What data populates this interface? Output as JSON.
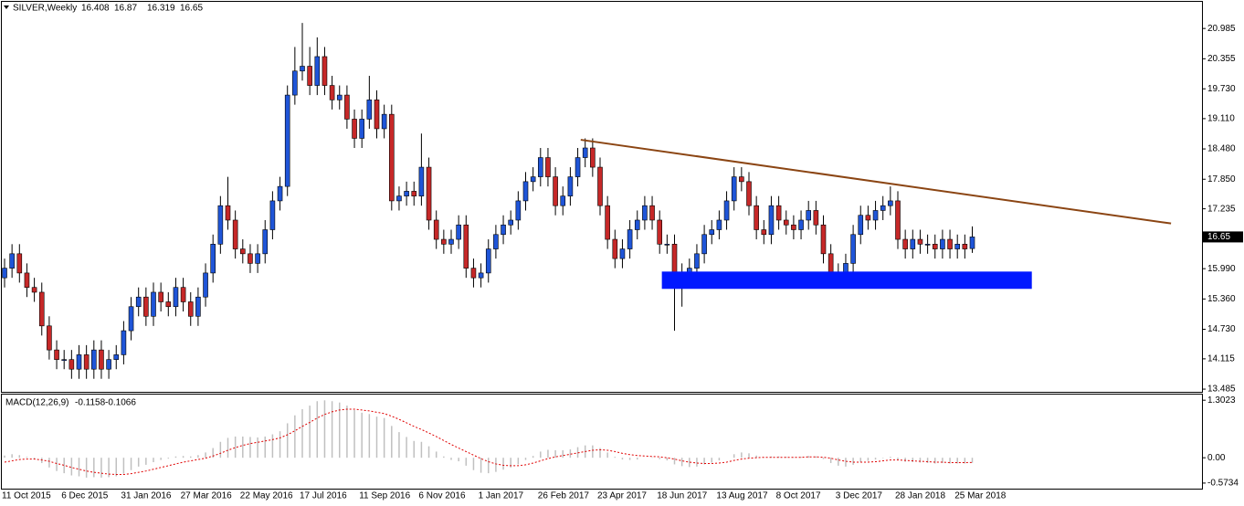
{
  "chart_data": [
    {
      "type": "candlestick",
      "title": "SILVER,Weekly",
      "categories": [
        "11 Oct 2015",
        null,
        null,
        null,
        null,
        null,
        null,
        null,
        "6 Dec 2015",
        null,
        null,
        null,
        null,
        null,
        null,
        null,
        "31 Jan 2016",
        null,
        null,
        null,
        null,
        null,
        null,
        null,
        "27 Mar 2016",
        null,
        null,
        null,
        null,
        null,
        null,
        null,
        "22 May 2016",
        null,
        null,
        null,
        null,
        null,
        null,
        null,
        "17 Jul 2016",
        null,
        null,
        null,
        null,
        null,
        null,
        null,
        "11 Sep 2016",
        null,
        null,
        null,
        null,
        null,
        null,
        null,
        "6 Nov 2016",
        null,
        null,
        null,
        null,
        null,
        null,
        null,
        "1 Jan 2017",
        null,
        null,
        null,
        null,
        null,
        null,
        null,
        "26 Feb 2017",
        null,
        null,
        null,
        null,
        null,
        null,
        null,
        "23 Apr 2017",
        null,
        null,
        null,
        null,
        null,
        null,
        null,
        "18 Jun 2017",
        null,
        null,
        null,
        null,
        null,
        null,
        null,
        "13 Aug 2017",
        null,
        null,
        null,
        null,
        null,
        null,
        null,
        "8 Oct 2017",
        null,
        null,
        null,
        null,
        null,
        null,
        null,
        "3 Dec 2017",
        null,
        null,
        null,
        null,
        null,
        null,
        null,
        "28 Jan 2018",
        null,
        null,
        null,
        null,
        null,
        null,
        null,
        "25 Mar 2018",
        null,
        null
      ],
      "open": [
        15.8,
        16.0,
        16.3,
        15.9,
        15.6,
        15.5,
        14.8,
        14.3,
        14.1,
        14.1,
        13.9,
        14.2,
        13.9,
        14.3,
        13.9,
        14.1,
        14.2,
        14.7,
        15.2,
        15.4,
        15.0,
        15.5,
        15.3,
        15.2,
        15.6,
        15.3,
        15.0,
        15.4,
        15.9,
        16.5,
        17.3,
        17.0,
        16.4,
        16.3,
        16.1,
        16.3,
        16.8,
        17.4,
        17.7,
        19.6,
        20.1,
        20.2,
        19.8,
        20.4,
        19.8,
        19.5,
        19.6,
        19.1,
        18.7,
        19.1,
        19.5,
        18.9,
        19.2,
        17.4,
        17.5,
        17.6,
        17.5,
        18.1,
        17.0,
        16.6,
        16.5,
        16.6,
        16.9,
        16.0,
        15.8,
        15.9,
        16.4,
        16.7,
        16.9,
        17.0,
        17.4,
        17.8,
        17.9,
        18.3,
        17.9,
        17.3,
        17.5,
        17.9,
        18.3,
        18.5,
        18.1,
        17.3,
        16.6,
        16.2,
        16.4,
        16.8,
        17.0,
        17.3,
        17.0,
        16.5,
        16.5,
        15.6,
        15.9,
        16.0,
        16.3,
        16.7,
        16.8,
        17.0,
        17.4,
        17.9,
        17.8,
        17.3,
        16.8,
        16.7,
        17.3,
        17.0,
        16.9,
        16.8,
        17.0,
        17.2,
        16.9,
        16.3,
        15.8,
        15.9,
        16.1,
        16.7,
        17.1,
        17.0,
        17.2,
        17.3,
        17.4,
        16.6,
        16.4,
        16.6,
        16.5,
        16.5,
        16.4,
        16.6,
        16.4,
        16.5,
        16.408
      ],
      "high": [
        16.2,
        16.5,
        16.5,
        16.1,
        15.8,
        15.7,
        15.0,
        14.5,
        14.3,
        14.3,
        14.4,
        14.4,
        14.5,
        14.5,
        14.3,
        14.4,
        14.9,
        15.4,
        15.6,
        15.6,
        15.7,
        15.7,
        15.5,
        15.8,
        15.8,
        15.5,
        15.6,
        16.1,
        16.7,
        17.5,
        17.9,
        17.2,
        16.6,
        16.5,
        16.5,
        17.0,
        17.6,
        17.9,
        19.8,
        20.6,
        21.1,
        20.6,
        20.8,
        20.6,
        20.0,
        19.8,
        19.8,
        19.3,
        19.3,
        20.0,
        19.7,
        19.4,
        19.4,
        17.7,
        17.8,
        17.8,
        18.8,
        18.3,
        17.2,
        16.8,
        16.8,
        17.1,
        17.1,
        16.2,
        16.1,
        16.6,
        16.9,
        17.1,
        17.2,
        17.6,
        18.0,
        18.1,
        18.5,
        18.5,
        18.1,
        17.7,
        18.1,
        18.5,
        18.7,
        18.7,
        18.3,
        17.5,
        16.8,
        16.6,
        17.0,
        17.2,
        17.5,
        17.5,
        17.2,
        16.7,
        16.7,
        16.1,
        16.2,
        16.5,
        16.9,
        17.0,
        17.2,
        17.6,
        18.1,
        18.1,
        18.0,
        17.5,
        17.0,
        17.5,
        17.5,
        17.2,
        17.1,
        17.2,
        17.4,
        17.4,
        17.1,
        16.5,
        16.1,
        16.3,
        16.9,
        17.3,
        17.3,
        17.4,
        17.5,
        17.7,
        17.6,
        16.8,
        16.8,
        16.8,
        16.7,
        16.7,
        16.8,
        16.8,
        16.7,
        16.7,
        16.87
      ],
      "low": [
        15.6,
        15.8,
        15.7,
        15.4,
        15.3,
        14.6,
        14.1,
        13.9,
        13.9,
        13.7,
        13.7,
        13.7,
        13.7,
        13.7,
        13.7,
        13.9,
        14.0,
        14.5,
        15.0,
        14.8,
        14.8,
        15.1,
        15.0,
        15.0,
        15.1,
        14.8,
        14.8,
        15.2,
        15.7,
        16.3,
        16.8,
        16.2,
        16.1,
        15.9,
        15.9,
        16.1,
        16.6,
        17.2,
        17.5,
        19.4,
        19.9,
        19.6,
        19.6,
        19.6,
        19.3,
        19.3,
        18.9,
        18.5,
        18.5,
        18.9,
        18.7,
        18.7,
        17.2,
        17.2,
        17.3,
        17.3,
        17.3,
        16.8,
        16.4,
        16.3,
        16.3,
        16.4,
        15.8,
        15.6,
        15.6,
        15.7,
        16.2,
        16.5,
        16.7,
        16.8,
        17.2,
        17.6,
        17.7,
        17.7,
        17.1,
        17.1,
        17.3,
        17.7,
        18.1,
        17.9,
        17.1,
        16.4,
        16.0,
        16.0,
        16.2,
        16.6,
        16.8,
        16.8,
        16.3,
        16.3,
        14.7,
        15.2,
        15.7,
        15.8,
        16.1,
        16.5,
        16.6,
        16.8,
        17.2,
        17.6,
        17.1,
        16.6,
        16.5,
        16.5,
        16.8,
        16.7,
        16.6,
        16.6,
        16.8,
        16.7,
        16.1,
        15.6,
        15.6,
        15.7,
        15.9,
        16.5,
        16.8,
        16.8,
        17.0,
        17.1,
        16.4,
        16.2,
        16.2,
        16.3,
        16.3,
        16.2,
        16.2,
        16.2,
        16.2,
        16.2,
        16.319
      ],
      "close": [
        16.0,
        16.3,
        15.9,
        15.6,
        15.5,
        14.8,
        14.3,
        14.1,
        14.1,
        13.9,
        14.2,
        13.9,
        14.3,
        13.9,
        14.1,
        14.2,
        14.7,
        15.2,
        15.4,
        15.0,
        15.5,
        15.3,
        15.2,
        15.6,
        15.3,
        15.0,
        15.4,
        15.9,
        16.5,
        17.3,
        17.0,
        16.4,
        16.3,
        16.1,
        16.3,
        16.8,
        17.4,
        17.7,
        19.6,
        20.1,
        20.2,
        19.8,
        20.4,
        19.8,
        19.5,
        19.6,
        19.1,
        18.7,
        19.1,
        19.5,
        18.9,
        19.2,
        17.4,
        17.5,
        17.6,
        17.5,
        18.1,
        17.0,
        16.6,
        16.5,
        16.6,
        16.9,
        16.0,
        15.8,
        15.9,
        16.4,
        16.7,
        16.9,
        17.0,
        17.4,
        17.8,
        17.9,
        18.3,
        17.9,
        17.3,
        17.5,
        17.9,
        18.3,
        18.5,
        18.1,
        17.3,
        16.6,
        16.2,
        16.4,
        16.8,
        17.0,
        17.3,
        17.0,
        16.5,
        16.5,
        15.6,
        15.9,
        16.0,
        16.3,
        16.7,
        16.8,
        17.0,
        17.4,
        17.9,
        17.8,
        17.3,
        16.8,
        16.7,
        17.3,
        17.0,
        16.9,
        16.8,
        17.0,
        17.2,
        16.9,
        16.3,
        15.8,
        15.9,
        16.1,
        16.7,
        17.1,
        17.0,
        17.2,
        17.3,
        17.4,
        16.6,
        16.4,
        16.6,
        16.5,
        16.5,
        16.4,
        16.6,
        16.4,
        16.5,
        16.4,
        16.65
      ],
      "up_color": "#1f55d8",
      "down_color": "#c62828",
      "wick_color": "#000000",
      "ylim": [
        13.41,
        21.52
      ],
      "yticks": [
        20.985,
        20.355,
        {
          "value": 19.73,
          "label": "19.730"
        },
        {
          "value": 19.11,
          "label": "19.110"
        },
        {
          "value": 18.48,
          "label": "18.480"
        },
        {
          "value": 17.85,
          "label": "17.850"
        },
        17.235,
        {
          "value": 15.99,
          "label": "15.990"
        },
        {
          "value": 15.36,
          "label": "15.360"
        },
        {
          "value": 14.73,
          "label": "14.730"
        },
        14.115,
        13.485
      ],
      "trend_line": {
        "x": [
          77.4,
          156.7
        ],
        "y": [
          18.67,
          16.93
        ],
        "color": "#8b4513"
      },
      "zone": {
        "x": [
          88.3,
          138
        ],
        "y": [
          15.57,
          15.93
        ],
        "color": "#0018ff"
      }
    },
    {
      "type": "macd",
      "title": "MACD(12,26,9)",
      "series": [
        {
          "name": "main",
          "color": "#c0c0c0",
          "values": [
            0.05,
            0.08,
            0.06,
            0.02,
            -0.03,
            -0.12,
            -0.22,
            -0.3,
            -0.35,
            -0.4,
            -0.42,
            -0.45,
            -0.44,
            -0.45,
            -0.44,
            -0.42,
            -0.36,
            -0.28,
            -0.2,
            -0.16,
            -0.1,
            -0.05,
            -0.02,
            0.03,
            0.04,
            0.03,
            0.06,
            0.12,
            0.22,
            0.36,
            0.45,
            0.48,
            0.48,
            0.47,
            0.46,
            0.48,
            0.53,
            0.6,
            0.78,
            0.96,
            1.1,
            1.18,
            1.28,
            1.3,
            1.28,
            1.25,
            1.18,
            1.08,
            1.02,
            0.99,
            0.93,
            0.9,
            0.72,
            0.58,
            0.47,
            0.38,
            0.36,
            0.26,
            0.14,
            0.03,
            -0.05,
            -0.08,
            -0.18,
            -0.28,
            -0.34,
            -0.35,
            -0.32,
            -0.27,
            -0.22,
            -0.15,
            -0.05,
            0.04,
            0.14,
            0.18,
            0.17,
            0.17,
            0.19,
            0.24,
            0.28,
            0.28,
            0.22,
            0.12,
            0.02,
            -0.04,
            -0.05,
            -0.04,
            0.0,
            0.01,
            -0.03,
            -0.06,
            -0.15,
            -0.19,
            -0.21,
            -0.2,
            -0.15,
            -0.11,
            -0.06,
            0.0,
            0.08,
            0.12,
            0.1,
            0.05,
            0.01,
            0.03,
            0.03,
            0.02,
            0.01,
            0.02,
            0.04,
            0.03,
            -0.03,
            -0.12,
            -0.18,
            -0.2,
            -0.16,
            -0.1,
            -0.07,
            -0.04,
            -0.01,
            0.02,
            -0.04,
            -0.09,
            -0.1,
            -0.11,
            -0.12,
            -0.13,
            -0.12,
            -0.13,
            -0.13,
            -0.13,
            -0.1158
          ]
        },
        {
          "name": "signal",
          "color": "#e00000",
          "values": [
            -0.1,
            -0.07,
            -0.04,
            -0.03,
            -0.03,
            -0.05,
            -0.08,
            -0.13,
            -0.17,
            -0.22,
            -0.26,
            -0.3,
            -0.33,
            -0.35,
            -0.37,
            -0.38,
            -0.38,
            -0.36,
            -0.33,
            -0.3,
            -0.26,
            -0.22,
            -0.18,
            -0.14,
            -0.1,
            -0.07,
            -0.04,
            -0.01,
            0.04,
            0.1,
            0.17,
            0.23,
            0.28,
            0.32,
            0.35,
            0.38,
            0.41,
            0.45,
            0.52,
            0.61,
            0.71,
            0.8,
            0.9,
            0.98,
            1.04,
            1.08,
            1.1,
            1.1,
            1.08,
            1.06,
            1.03,
            1.0,
            0.94,
            0.87,
            0.79,
            0.71,
            0.64,
            0.56,
            0.48,
            0.39,
            0.3,
            0.22,
            0.14,
            0.06,
            -0.02,
            -0.09,
            -0.14,
            -0.17,
            -0.18,
            -0.18,
            -0.16,
            -0.12,
            -0.07,
            -0.02,
            0.02,
            0.05,
            0.08,
            0.11,
            0.14,
            0.17,
            0.18,
            0.17,
            0.14,
            0.1,
            0.07,
            0.05,
            0.04,
            0.03,
            0.02,
            0.0,
            -0.03,
            -0.07,
            -0.1,
            -0.12,
            -0.13,
            -0.13,
            -0.12,
            -0.1,
            -0.06,
            -0.03,
            -0.01,
            0.0,
            0.01,
            0.01,
            0.01,
            0.01,
            0.01,
            0.01,
            0.02,
            0.02,
            0.01,
            -0.01,
            -0.05,
            -0.08,
            -0.1,
            -0.1,
            -0.1,
            -0.09,
            -0.07,
            -0.05,
            -0.05,
            -0.06,
            -0.07,
            -0.08,
            -0.09,
            -0.1,
            -0.1,
            -0.11,
            -0.11,
            -0.11,
            -0.1066
          ]
        }
      ],
      "ylim": [
        -0.72,
        1.43
      ],
      "yticks": [
        1.3023,
        {
          "value": 0,
          "label": "0.00"
        },
        -0.5734
      ]
    }
  ]
}
